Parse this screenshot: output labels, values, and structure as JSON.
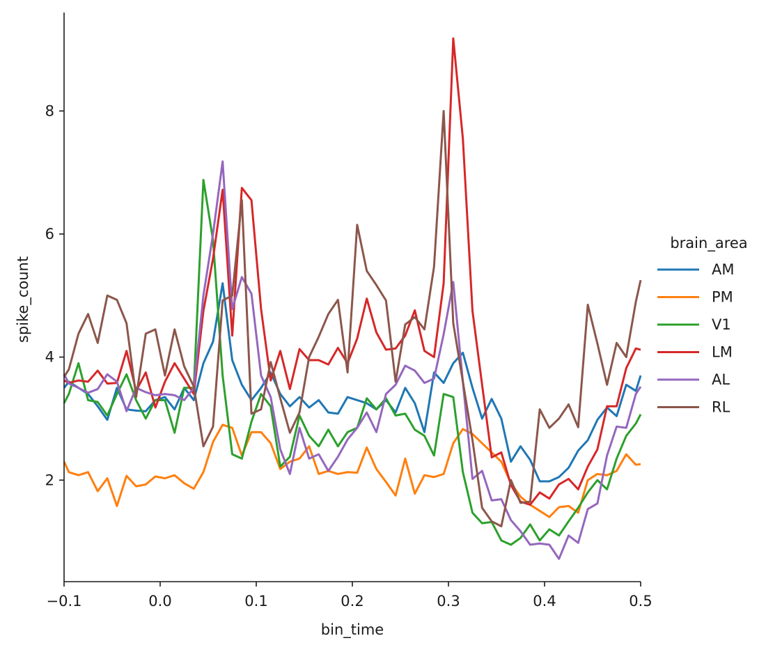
{
  "chart_data": {
    "type": "line",
    "xlabel": "bin_time",
    "ylabel": "spike_count",
    "xlim": [
      -0.1,
      0.5
    ],
    "ylim": [
      0.35,
      9.6
    ],
    "x_ticks": [
      -0.1,
      0.0,
      0.1,
      0.2,
      0.3,
      0.4,
      0.5
    ],
    "x_tick_labels": [
      "−0.1",
      "0.0",
      "0.1",
      "0.2",
      "0.3",
      "0.4",
      "0.5"
    ],
    "y_ticks": [
      2,
      4,
      6,
      8
    ],
    "y_tick_labels": [
      "2",
      "4",
      "6",
      "8"
    ],
    "grid": false,
    "legend": {
      "title": "brain_area",
      "placement": "right"
    },
    "x": [
      -0.1,
      -0.095,
      -0.085,
      -0.075,
      -0.065,
      -0.055,
      -0.045,
      -0.035,
      -0.025,
      -0.015,
      -0.005,
      0.005,
      0.015,
      0.025,
      0.035,
      0.045,
      0.055,
      0.065,
      0.075,
      0.085,
      0.095,
      0.105,
      0.115,
      0.125,
      0.135,
      0.145,
      0.155,
      0.165,
      0.175,
      0.185,
      0.195,
      0.205,
      0.215,
      0.225,
      0.235,
      0.245,
      0.255,
      0.265,
      0.275,
      0.285,
      0.295,
      0.305,
      0.315,
      0.325,
      0.335,
      0.345,
      0.355,
      0.365,
      0.375,
      0.385,
      0.395,
      0.405,
      0.415,
      0.425,
      0.435,
      0.445,
      0.455,
      0.465,
      0.475,
      0.485,
      0.495,
      0.5
    ],
    "series": [
      {
        "name": "AM",
        "color": "#1f77b4",
        "values": [
          3.5,
          3.6,
          3.5,
          3.4,
          3.2,
          2.98,
          3.5,
          3.15,
          3.13,
          3.12,
          3.3,
          3.35,
          3.15,
          3.5,
          3.3,
          3.9,
          4.25,
          5.2,
          3.95,
          3.55,
          3.3,
          3.5,
          3.75,
          3.4,
          3.2,
          3.35,
          3.18,
          3.3,
          3.1,
          3.08,
          3.35,
          3.3,
          3.25,
          3.15,
          3.3,
          3.1,
          3.5,
          3.25,
          2.78,
          3.75,
          3.58,
          3.9,
          4.07,
          3.5,
          3.0,
          3.32,
          3.0,
          2.3,
          2.55,
          2.33,
          1.98,
          1.98,
          2.05,
          2.2,
          2.48,
          2.65,
          2.98,
          3.18,
          3.04,
          3.55,
          3.45,
          3.7
        ]
      },
      {
        "name": "PM",
        "color": "#ff7f0e",
        "values": [
          2.3,
          2.13,
          2.08,
          2.13,
          1.82,
          2.03,
          1.58,
          2.07,
          1.9,
          1.93,
          2.06,
          2.03,
          2.08,
          1.95,
          1.86,
          2.13,
          2.62,
          2.9,
          2.85,
          2.4,
          2.78,
          2.78,
          2.6,
          2.18,
          2.3,
          2.35,
          2.55,
          2.1,
          2.15,
          2.1,
          2.13,
          2.12,
          2.53,
          2.18,
          1.97,
          1.75,
          2.35,
          1.78,
          2.08,
          2.05,
          2.1,
          2.6,
          2.83,
          2.75,
          2.6,
          2.45,
          2.3,
          1.95,
          1.73,
          1.6,
          1.5,
          1.4,
          1.56,
          1.58,
          1.47,
          2.0,
          2.1,
          2.08,
          2.15,
          2.42,
          2.25,
          2.26
        ]
      },
      {
        "name": "V1",
        "color": "#2ca02c",
        "values": [
          3.25,
          3.4,
          3.9,
          3.3,
          3.27,
          3.05,
          3.4,
          3.72,
          3.3,
          3.0,
          3.3,
          3.3,
          2.77,
          3.5,
          3.5,
          6.88,
          5.9,
          3.7,
          2.42,
          2.35,
          2.95,
          3.4,
          3.2,
          2.22,
          2.38,
          3.05,
          2.72,
          2.55,
          2.82,
          2.55,
          2.78,
          2.85,
          3.33,
          3.15,
          3.33,
          3.05,
          3.08,
          2.82,
          2.72,
          2.4,
          3.4,
          3.35,
          2.13,
          1.47,
          1.3,
          1.32,
          1.02,
          0.95,
          1.06,
          1.28,
          1.02,
          1.2,
          1.1,
          1.33,
          1.55,
          1.8,
          2.0,
          1.85,
          2.35,
          2.72,
          2.92,
          3.07
        ]
      },
      {
        "name": "LM",
        "color": "#d62728",
        "values": [
          3.62,
          3.58,
          3.62,
          3.6,
          3.78,
          3.57,
          3.58,
          4.1,
          3.45,
          3.75,
          3.18,
          3.6,
          3.9,
          3.65,
          3.4,
          4.75,
          5.6,
          6.72,
          4.35,
          6.75,
          6.55,
          4.78,
          3.62,
          4.1,
          3.48,
          4.13,
          3.95,
          3.95,
          3.88,
          4.15,
          3.9,
          4.3,
          4.95,
          4.4,
          4.12,
          4.14,
          4.35,
          4.76,
          4.1,
          4.0,
          5.2,
          9.18,
          7.55,
          4.75,
          3.55,
          2.37,
          2.45,
          1.92,
          1.65,
          1.6,
          1.8,
          1.7,
          1.93,
          2.02,
          1.85,
          2.22,
          2.5,
          3.2,
          3.2,
          3.82,
          4.14,
          4.12
        ]
      },
      {
        "name": "AL",
        "color": "#9467bd",
        "values": [
          3.72,
          3.57,
          3.5,
          3.42,
          3.48,
          3.72,
          3.6,
          3.12,
          3.5,
          3.43,
          3.38,
          3.4,
          3.38,
          3.3,
          3.5,
          5.0,
          6.0,
          7.18,
          4.78,
          5.3,
          5.03,
          3.7,
          3.35,
          2.5,
          2.1,
          2.85,
          2.35,
          2.42,
          2.15,
          2.38,
          2.66,
          2.85,
          3.1,
          2.78,
          3.4,
          3.55,
          3.86,
          3.78,
          3.58,
          3.65,
          4.37,
          5.22,
          3.6,
          2.02,
          2.15,
          1.67,
          1.69,
          1.35,
          1.17,
          0.95,
          0.97,
          0.95,
          0.72,
          1.1,
          0.98,
          1.53,
          1.62,
          2.4,
          2.87,
          2.85,
          3.4,
          3.52
        ]
      },
      {
        "name": "RL",
        "color": "#8c564b",
        "values": [
          3.68,
          3.8,
          4.38,
          4.7,
          4.23,
          5.0,
          4.93,
          4.55,
          3.35,
          4.38,
          4.45,
          3.7,
          4.45,
          3.85,
          3.52,
          2.55,
          2.87,
          4.92,
          5.0,
          6.55,
          3.08,
          3.15,
          3.92,
          3.33,
          2.77,
          3.1,
          4.0,
          4.33,
          4.7,
          4.93,
          3.75,
          6.15,
          5.4,
          5.17,
          4.92,
          3.6,
          4.53,
          4.65,
          4.45,
          5.47,
          8.0,
          4.55,
          3.6,
          2.65,
          1.55,
          1.33,
          1.25,
          2.0,
          1.63,
          1.65,
          3.15,
          2.85,
          3.0,
          3.23,
          2.86,
          4.85,
          4.22,
          3.55,
          4.23,
          4.0,
          4.9,
          5.25
        ]
      }
    ]
  }
}
